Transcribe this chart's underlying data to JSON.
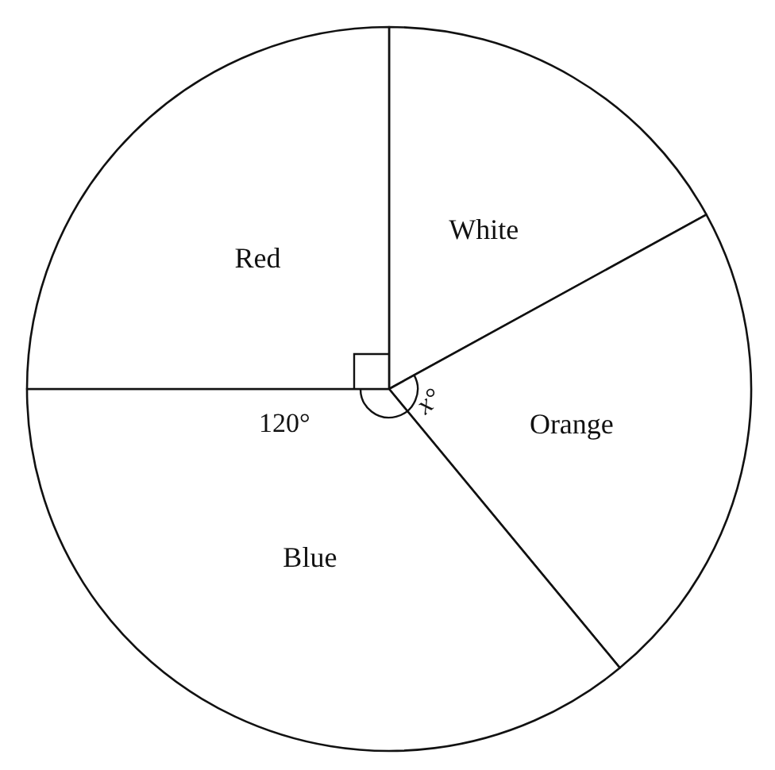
{
  "chart_data": {
    "type": "pie",
    "categories": [
      "White",
      "Orange",
      "Blue",
      "Red"
    ],
    "values": [
      17,
      22,
      36,
      25
    ],
    "colors": [
      "#ffffff",
      "#ffffff",
      "#ffffff",
      "#ffffff"
    ],
    "annotations": [
      "120°",
      "x°"
    ],
    "legend": false
  }
}
